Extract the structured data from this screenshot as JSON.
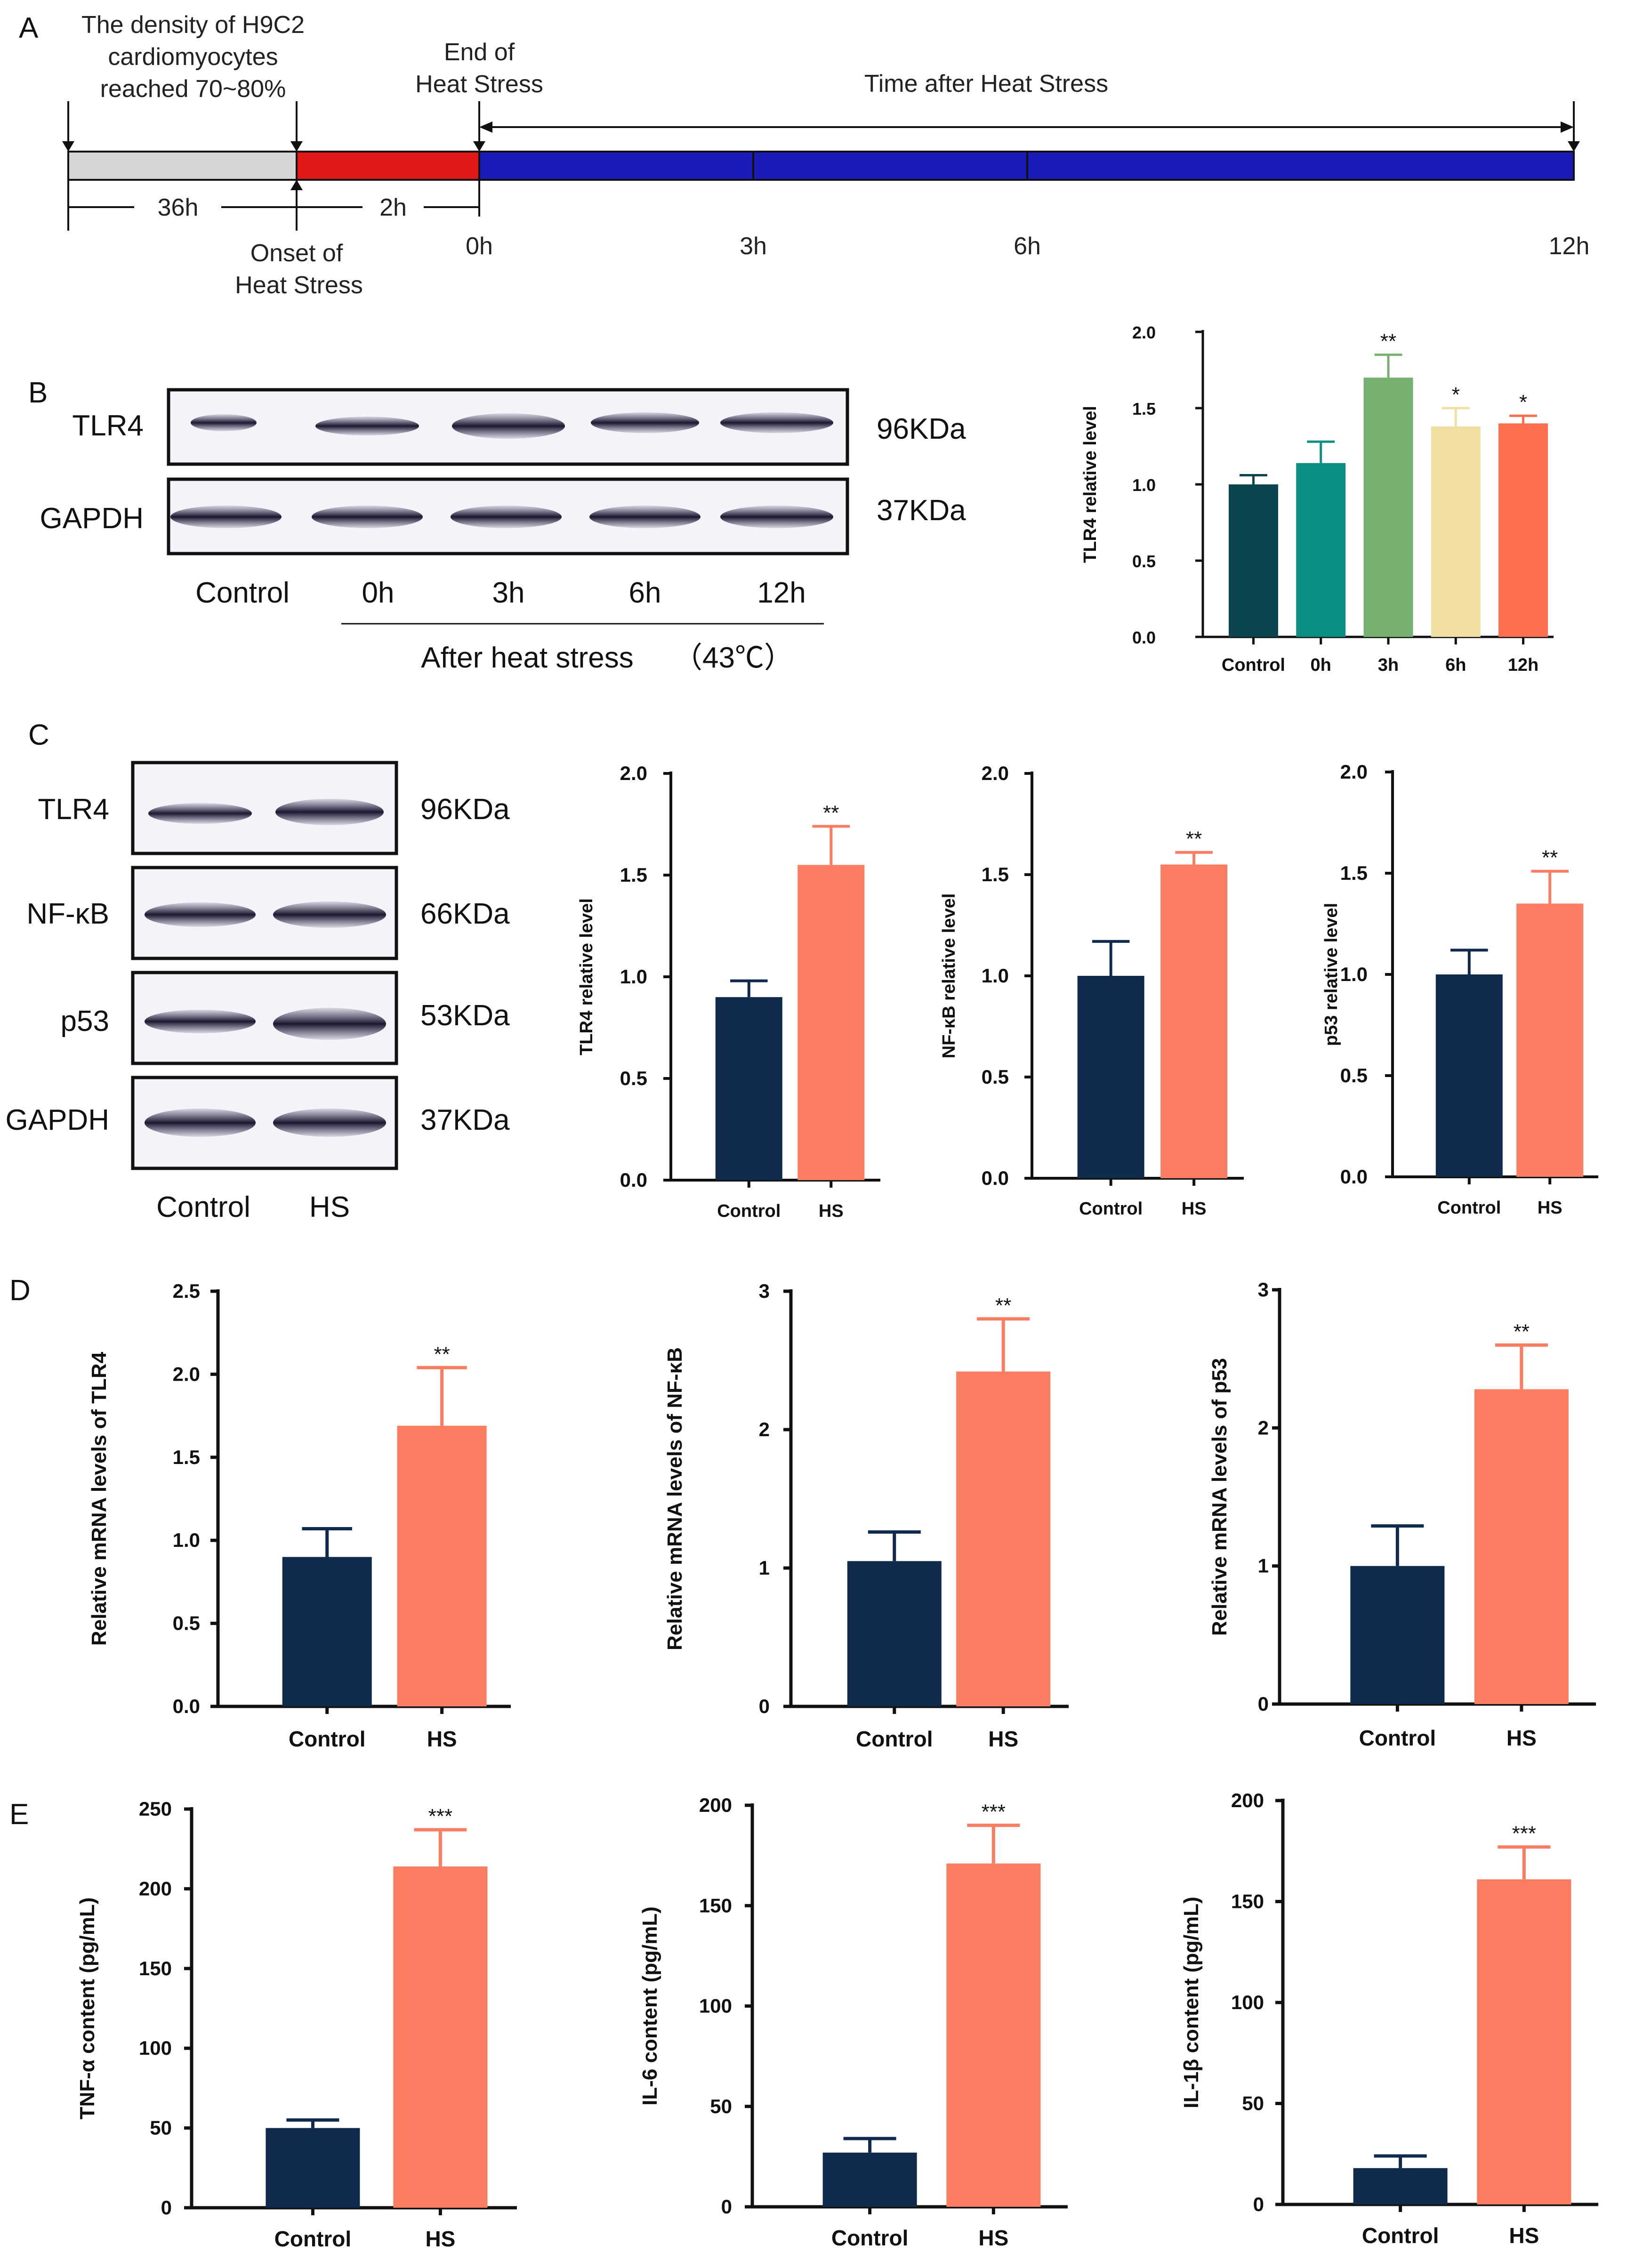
{
  "panel_labels": {
    "a": "A",
    "b": "B",
    "c": "C",
    "d": "D",
    "e": "E"
  },
  "timeline": {
    "density_lines": [
      "The density of H9C2",
      "cardiomyocytes",
      "reached 70~80%"
    ],
    "end_lines": [
      "End of",
      "Heat Stress"
    ],
    "time_after": "Time after Heat Stress",
    "onset_lines": [
      "Onset of",
      "Heat Stress"
    ],
    "dur_36": "36h",
    "dur_2": "2h",
    "ticks": [
      "0h",
      "3h",
      "6h",
      "12h"
    ],
    "colors": {
      "pre": "#d6d6d6",
      "heat": "#e01818",
      "after": "#1b1bb8"
    }
  },
  "blot_b": {
    "proteins": [
      "TLR4",
      "GAPDH"
    ],
    "sizes": [
      "96KDa",
      "37KDa"
    ],
    "lanes": [
      "Control",
      "0h",
      "3h",
      "6h",
      "12h"
    ],
    "caption": "After heat stress",
    "temp": "（43℃）"
  },
  "blot_c": {
    "proteins": [
      "TLR4",
      "NF-κB",
      "p53",
      "GAPDH"
    ],
    "sizes": [
      "96KDa",
      "66KDa",
      "53KDa",
      "37KDa"
    ],
    "lanes": [
      "Control",
      "HS"
    ]
  },
  "chart_data": [
    {
      "id": "b",
      "type": "bar",
      "categories": [
        "Control",
        "0h",
        "3h",
        "6h",
        "12h"
      ],
      "values": [
        1.0,
        1.14,
        1.7,
        1.38,
        1.4
      ],
      "errors": [
        0.06,
        0.14,
        0.15,
        0.12,
        0.05
      ],
      "significance": [
        "",
        "",
        "**",
        "*",
        "*"
      ],
      "ylabel": "TLR4 relative level",
      "ylim": [
        0,
        2.0
      ],
      "yticks": [
        "0.0",
        "0.5",
        "1.0",
        "1.5",
        "2.0"
      ],
      "colors": [
        "#0c4550",
        "#0c8f85",
        "#77b170",
        "#f1dfa1",
        "#ff6d4f"
      ]
    },
    {
      "id": "c1",
      "type": "bar",
      "categories": [
        "Control",
        "HS"
      ],
      "values": [
        0.9,
        1.55
      ],
      "errors": [
        0.08,
        0.19
      ],
      "significance": [
        "",
        "**"
      ],
      "ylabel": "TLR4 relative level",
      "ylim": [
        0,
        2.0
      ],
      "yticks": [
        "0.0",
        "0.5",
        "1.0",
        "1.5",
        "2.0"
      ],
      "colors": [
        "#0f2a4d",
        "#fa7d62"
      ]
    },
    {
      "id": "c2",
      "type": "bar",
      "categories": [
        "Control",
        "HS"
      ],
      "values": [
        1.0,
        1.55
      ],
      "errors": [
        0.17,
        0.06
      ],
      "significance": [
        "",
        "**"
      ],
      "ylabel": "NF-κB relative level",
      "ylim": [
        0,
        2.0
      ],
      "yticks": [
        "0.0",
        "0.5",
        "1.0",
        "1.5",
        "2.0"
      ],
      "colors": [
        "#0f2a4d",
        "#fa7d62"
      ]
    },
    {
      "id": "c3",
      "type": "bar",
      "categories": [
        "Control",
        "HS"
      ],
      "values": [
        1.0,
        1.35
      ],
      "errors": [
        0.12,
        0.16
      ],
      "significance": [
        "",
        "**"
      ],
      "ylabel": "p53 relative level",
      "ylim": [
        0,
        2.0
      ],
      "yticks": [
        "0.0",
        "0.5",
        "1.0",
        "1.5",
        "2.0"
      ],
      "colors": [
        "#0f2a4d",
        "#fa7d62"
      ]
    },
    {
      "id": "d1",
      "type": "bar",
      "categories": [
        "Control",
        "HS"
      ],
      "values": [
        0.9,
        1.69
      ],
      "errors": [
        0.17,
        0.35
      ],
      "significance": [
        "",
        "**"
      ],
      "ylabel": "Relative mRNA levels of TLR4",
      "ylim": [
        0,
        2.5
      ],
      "yticks": [
        "0.0",
        "0.5",
        "1.0",
        "1.5",
        "2.0",
        "2.5"
      ],
      "colors": [
        "#0f2a4d",
        "#fa7d62"
      ]
    },
    {
      "id": "d2",
      "type": "bar",
      "categories": [
        "Control",
        "HS"
      ],
      "values": [
        1.05,
        2.42
      ],
      "errors": [
        0.21,
        0.38
      ],
      "significance": [
        "",
        "**"
      ],
      "ylabel": "Relative mRNA levels of NF-κB",
      "ylim": [
        0,
        3
      ],
      "yticks": [
        "0",
        "1",
        "2",
        "3"
      ],
      "colors": [
        "#0f2a4d",
        "#fa7d62"
      ]
    },
    {
      "id": "d3",
      "type": "bar",
      "categories": [
        "Control",
        "HS"
      ],
      "values": [
        1.0,
        2.28
      ],
      "errors": [
        0.29,
        0.32
      ],
      "significance": [
        "",
        "**"
      ],
      "ylabel": "Relative mRNA levels of p53",
      "ylim": [
        0,
        3
      ],
      "yticks": [
        "0",
        "1",
        "2",
        "3"
      ],
      "colors": [
        "#0f2a4d",
        "#fa7d62"
      ]
    },
    {
      "id": "e1",
      "type": "bar",
      "categories": [
        "Control",
        "HS"
      ],
      "values": [
        50,
        214
      ],
      "errors": [
        5,
        23
      ],
      "significance": [
        "",
        "***"
      ],
      "ylabel": "TNF-α content (pg/mL)",
      "ylim": [
        0,
        250
      ],
      "yticks": [
        "0",
        "50",
        "100",
        "150",
        "200",
        "250"
      ],
      "colors": [
        "#0f2a4d",
        "#fa7d62"
      ]
    },
    {
      "id": "e2",
      "type": "bar",
      "categories": [
        "Control",
        "HS"
      ],
      "values": [
        27,
        171
      ],
      "errors": [
        7,
        19
      ],
      "significance": [
        "",
        "***"
      ],
      "ylabel": "IL-6 content (pg/mL)",
      "ylim": [
        0,
        200
      ],
      "yticks": [
        "0",
        "50",
        "100",
        "150",
        "200"
      ],
      "colors": [
        "#0f2a4d",
        "#fa7d62"
      ]
    },
    {
      "id": "e3",
      "type": "bar",
      "categories": [
        "Control",
        "HS"
      ],
      "values": [
        18,
        161
      ],
      "errors": [
        6,
        16
      ],
      "significance": [
        "",
        "***"
      ],
      "ylabel": "IL-1β content (pg/mL)",
      "ylim": [
        0,
        200
      ],
      "yticks": [
        "0",
        "50",
        "100",
        "150",
        "200"
      ],
      "colors": [
        "#0f2a4d",
        "#fa7d62"
      ]
    }
  ]
}
